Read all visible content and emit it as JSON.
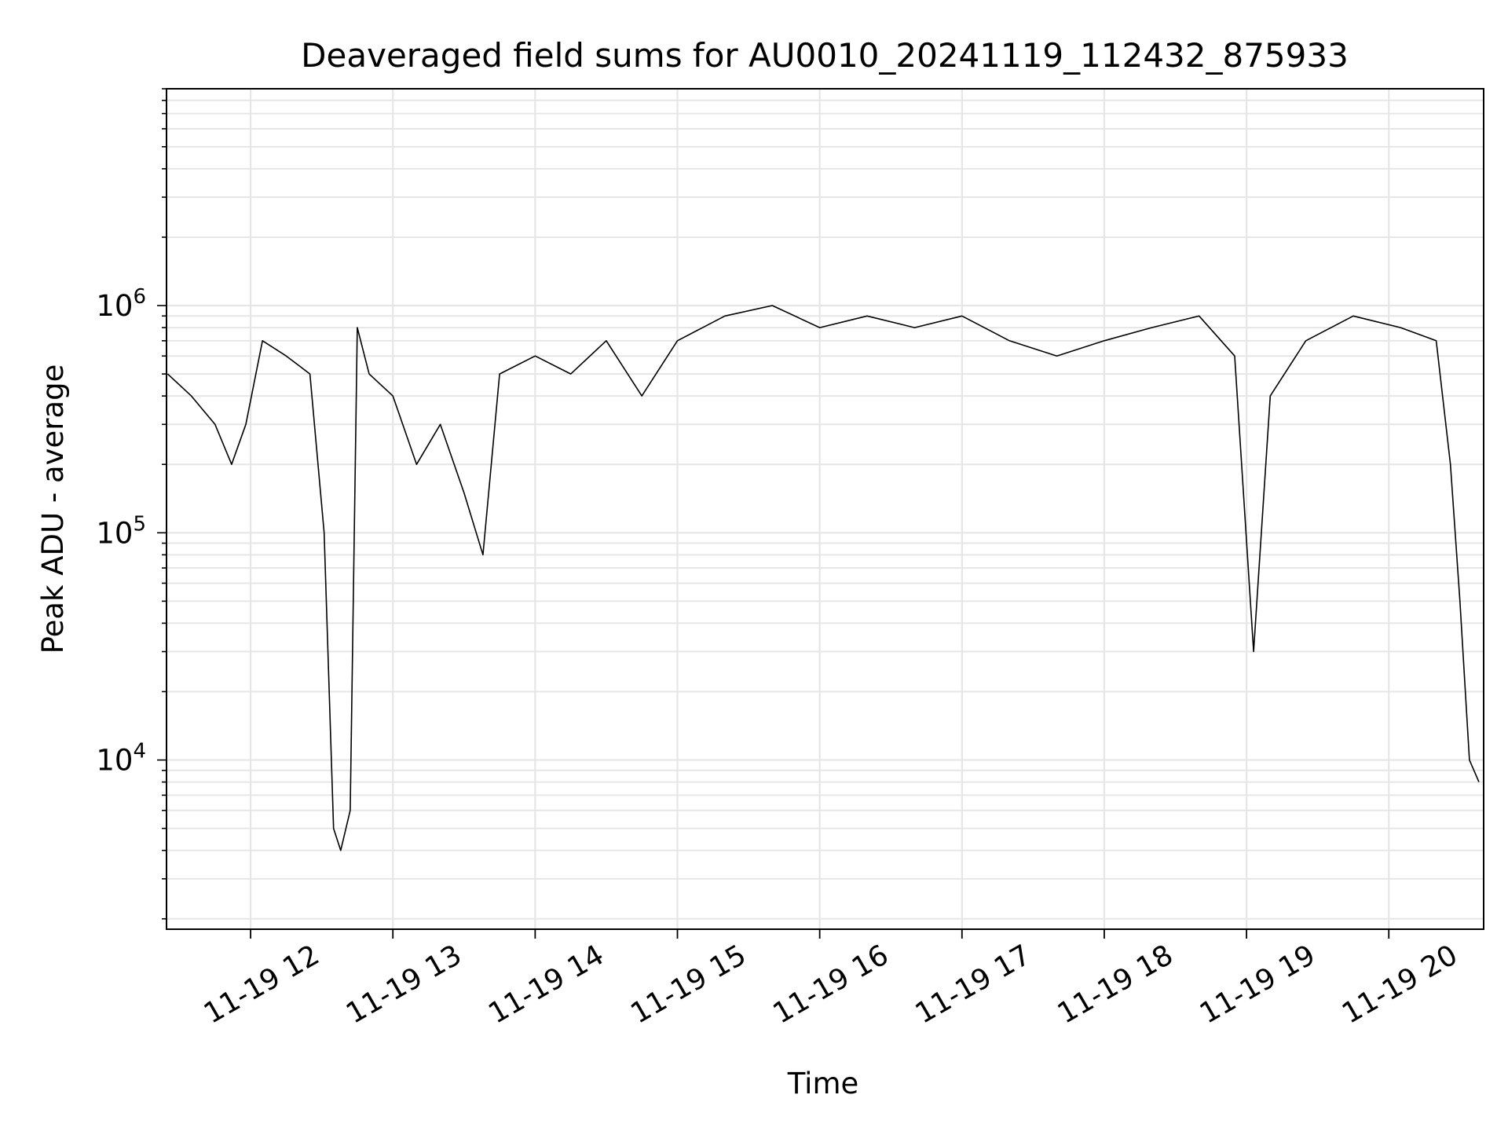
{
  "chart_data": {
    "type": "line",
    "title": "Deaveraged field sums for AU0010_20241119_112432_875933",
    "xlabel": "Time",
    "ylabel": "Peak ADU - average",
    "x_range": [
      "2024-11-19T11:24:32",
      "2024-11-19T20:40:00"
    ],
    "y_range": [
      1800,
      9000000
    ],
    "y_scale": "log",
    "grid": true,
    "legend": "none",
    "line_color": "#000000",
    "x_ticks": [
      {
        "label": "11-19 12",
        "value": "2024-11-19T12:00:00"
      },
      {
        "label": "11-19 13",
        "value": "2024-11-19T13:00:00"
      },
      {
        "label": "11-19 14",
        "value": "2024-11-19T14:00:00"
      },
      {
        "label": "11-19 15",
        "value": "2024-11-19T15:00:00"
      },
      {
        "label": "11-19 16",
        "value": "2024-11-19T16:00:00"
      },
      {
        "label": "11-19 17",
        "value": "2024-11-19T17:00:00"
      },
      {
        "label": "11-19 18",
        "value": "2024-11-19T18:00:00"
      },
      {
        "label": "11-19 19",
        "value": "2024-11-19T19:00:00"
      },
      {
        "label": "11-19 20",
        "value": "2024-11-19T20:00:00"
      }
    ],
    "y_ticks": [
      {
        "base": "10",
        "exp": "4",
        "value": 10000
      },
      {
        "base": "10",
        "exp": "5",
        "value": 100000
      },
      {
        "base": "10",
        "exp": "6",
        "value": 1000000
      }
    ],
    "series": [
      {
        "x": [
          "2024-11-19T11:25:00",
          "2024-11-19T11:35:00",
          "2024-11-19T11:45:00",
          "2024-11-19T11:52:00",
          "2024-11-19T11:58:00",
          "2024-11-19T12:05:00",
          "2024-11-19T12:15:00",
          "2024-11-19T12:25:00",
          "2024-11-19T12:31:00",
          "2024-11-19T12:35:00",
          "2024-11-19T12:38:00",
          "2024-11-19T12:42:00",
          "2024-11-19T12:45:00",
          "2024-11-19T12:50:00",
          "2024-11-19T13:00:00",
          "2024-11-19T13:10:00",
          "2024-11-19T13:20:00",
          "2024-11-19T13:30:00",
          "2024-11-19T13:38:00",
          "2024-11-19T13:45:00",
          "2024-11-19T14:00:00",
          "2024-11-19T14:15:00",
          "2024-11-19T14:30:00",
          "2024-11-19T14:45:00",
          "2024-11-19T15:00:00",
          "2024-11-19T15:20:00",
          "2024-11-19T15:40:00",
          "2024-11-19T16:00:00",
          "2024-11-19T16:20:00",
          "2024-11-19T16:40:00",
          "2024-11-19T17:00:00",
          "2024-11-19T17:20:00",
          "2024-11-19T17:40:00",
          "2024-11-19T18:00:00",
          "2024-11-19T18:20:00",
          "2024-11-19T18:40:00",
          "2024-11-19T18:55:00",
          "2024-11-19T19:03:00",
          "2024-11-19T19:10:00",
          "2024-11-19T19:25:00",
          "2024-11-19T19:45:00",
          "2024-11-19T20:05:00",
          "2024-11-19T20:20:00",
          "2024-11-19T20:26:00",
          "2024-11-19T20:30:00",
          "2024-11-19T20:34:00",
          "2024-11-19T20:38:00"
        ],
        "values": [
          500000,
          400000,
          300000,
          200000,
          300000,
          700000,
          600000,
          500000,
          100000,
          5000,
          4000,
          6000,
          800000,
          500000,
          400000,
          200000,
          300000,
          150000,
          80000,
          500000,
          600000,
          500000,
          700000,
          400000,
          700000,
          900000,
          1000000,
          800000,
          900000,
          800000,
          900000,
          700000,
          600000,
          700000,
          800000,
          900000,
          600000,
          30000,
          400000,
          700000,
          900000,
          800000,
          700000,
          200000,
          50000,
          10000,
          8000
        ]
      }
    ]
  }
}
